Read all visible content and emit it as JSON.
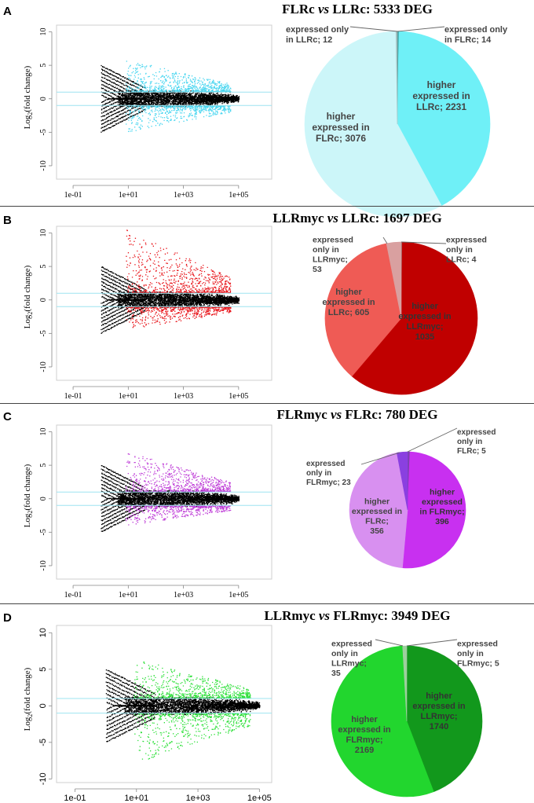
{
  "chart_data": [
    {
      "panel": "A",
      "title_prefix": "FLRc",
      "title_vs": "vs",
      "title_suffix": "LLRc: 5333 DEG",
      "ma_plot": {
        "type": "scatter",
        "ylabel_base": "Log",
        "ylabel_sub": "2",
        "ylabel_rest": "(fold change)",
        "xscale": "log10",
        "xlim_exp": [
          -1.6,
          6.2
        ],
        "ylim": [
          -12,
          11
        ],
        "xticks": [
          {
            "exp": -1,
            "label": "1e-01"
          },
          {
            "exp": 1,
            "label": "1e+01"
          },
          {
            "exp": 3,
            "label": "1e+03"
          },
          {
            "exp": 5,
            "label": "1e+05"
          }
        ],
        "yticks": [
          {
            "value": 10,
            "label": "10"
          },
          {
            "value": 5,
            "label": "5"
          },
          {
            "value": 0,
            "label": "0"
          },
          {
            "value": -5,
            "label": "-5"
          },
          {
            "value": -10,
            "label": "-10"
          }
        ],
        "threshold_lines": [
          1,
          -1
        ],
        "threshold_color": "#9ee4f0",
        "de_color": "#49d6f0",
        "nonde_color": "#000000",
        "spread_upper": 5.8,
        "spread_lower": -5.0
      },
      "pie": {
        "type": "pie",
        "slices": [
          {
            "label": "expressed only in FLRc",
            "value": 14,
            "color": "#2f8f8f",
            "ann": [
              "expressed only",
              "in FLRc; 14"
            ]
          },
          {
            "label": "higher expressed in LLRc",
            "value": 2231,
            "color": "#6ff0f7",
            "ann": [
              "higher",
              "expressed in",
              "LLRc; 2231"
            ]
          },
          {
            "label": "higher expressed in FLRc",
            "value": 3076,
            "color": "#ccf6f9",
            "ann": [
              "higher",
              "expressed in",
              "FLRc; 3076"
            ]
          },
          {
            "label": "expressed only in LLRc",
            "value": 12,
            "color": "#9fbfbf",
            "ann": [
              "expressed only",
              "in LLRc; 12"
            ]
          }
        ]
      }
    },
    {
      "panel": "B",
      "title_prefix": "LLRmyc",
      "title_vs": "vs",
      "title_suffix": "LLRc: 1697 DEG",
      "ma_plot": {
        "type": "scatter",
        "ylabel_base": "Log",
        "ylabel_sub": "2",
        "ylabel_rest": "(fold change)",
        "xscale": "log10",
        "xlim_exp": [
          -1.6,
          6.2
        ],
        "ylim": [
          -12,
          11
        ],
        "xticks": [
          {
            "exp": -1,
            "label": "1e-01"
          },
          {
            "exp": 1,
            "label": "1e+01"
          },
          {
            "exp": 3,
            "label": "1e+03"
          },
          {
            "exp": 5,
            "label": "1e+05"
          }
        ],
        "yticks": [
          {
            "value": 10,
            "label": "10"
          },
          {
            "value": 5,
            "label": "5"
          },
          {
            "value": 0,
            "label": "0"
          },
          {
            "value": -5,
            "label": "-5"
          },
          {
            "value": -10,
            "label": "-10"
          }
        ],
        "threshold_lines": [
          1,
          -1
        ],
        "threshold_color": "#9ee4f0",
        "de_color": "#e8141a",
        "nonde_color": "#000000",
        "spread_upper": 10.5,
        "spread_lower": -4.5
      },
      "pie": {
        "type": "pie",
        "slices": [
          {
            "label": "expressed only in LLRc",
            "value": 4,
            "color": "#9a5050",
            "ann": [
              "expressed",
              "only in",
              "LLRc; 4"
            ]
          },
          {
            "label": "higher expressed in LLRmyc",
            "value": 1035,
            "color": "#c00000",
            "ann": [
              "higher",
              "expressed in",
              "LLRmyc;",
              "1035"
            ]
          },
          {
            "label": "higher expressed in LLRc",
            "value": 605,
            "color": "#ef5b55",
            "ann": [
              "higher",
              "expressed in",
              "LLRc; 605"
            ]
          },
          {
            "label": "expressed only in LLRmyc",
            "value": 53,
            "color": "#d9a0a0",
            "ann": [
              "expressed",
              "only in",
              "LLRmyc;",
              "53"
            ]
          }
        ]
      }
    },
    {
      "panel": "C",
      "title_prefix": "FLRmyc",
      "title_vs": "vs",
      "title_suffix": "FLRc: 780 DEG",
      "ma_plot": {
        "type": "scatter",
        "ylabel_base": "Log",
        "ylabel_sub": "2",
        "ylabel_rest": "(fold change)",
        "xscale": "log10",
        "xlim_exp": [
          -1.6,
          6.2
        ],
        "ylim": [
          -12,
          11
        ],
        "xticks": [
          {
            "exp": -1,
            "label": "1e-01"
          },
          {
            "exp": 1,
            "label": "1e+01"
          },
          {
            "exp": 3,
            "label": "1e+03"
          },
          {
            "exp": 5,
            "label": "1e+05"
          }
        ],
        "yticks": [
          {
            "value": 10,
            "label": "10"
          },
          {
            "value": 5,
            "label": "5"
          },
          {
            "value": 0,
            "label": "0"
          },
          {
            "value": -5,
            "label": "-5"
          },
          {
            "value": -10,
            "label": "-10"
          }
        ],
        "threshold_lines": [
          1,
          -1
        ],
        "threshold_color": "#9ee4f0",
        "de_color": "#c040d8",
        "nonde_color": "#000000",
        "spread_upper": 7.0,
        "spread_lower": -4.0
      },
      "pie": {
        "type": "pie",
        "slices": [
          {
            "label": "expressed only in FLRc",
            "value": 5,
            "color": "#7a3fb0",
            "ann": [
              "expressed",
              "only in",
              "FLRc; 5"
            ]
          },
          {
            "label": "higher expressed in FLRmyc",
            "value": 396,
            "color": "#c830f0",
            "ann": [
              "higher",
              "expressed",
              "in FLRmyc;",
              "396"
            ]
          },
          {
            "label": "higher expressed in FLRc",
            "value": 356,
            "color": "#d890f0",
            "ann": [
              "higher",
              "expressed in",
              "FLRc;",
              "356"
            ]
          },
          {
            "label": "expressed only in FLRmyc",
            "value": 23,
            "color": "#8a40e0",
            "ann": [
              "expressed",
              "only in",
              "FLRmyc; 23"
            ]
          }
        ]
      }
    },
    {
      "panel": "D",
      "title_prefix": "LLRmyc",
      "title_vs": "vs",
      "title_suffix": "FLRmyc: 3949 DEG",
      "ma_plot": {
        "type": "scatter",
        "ylabel_base": "Log",
        "ylabel_sub": "2",
        "ylabel_rest": "(fold change)",
        "xscale": "log10",
        "xlim_exp": [
          -1.6,
          5.4
        ],
        "ylim": [
          -10.5,
          11
        ],
        "xticks": [
          {
            "exp": -1,
            "label": "1e-01"
          },
          {
            "exp": 1,
            "label": "1e+01"
          },
          {
            "exp": 3,
            "label": "1e+03"
          },
          {
            "exp": 5,
            "label": "1e+05"
          }
        ],
        "yticks": [
          {
            "value": 10,
            "label": "10"
          },
          {
            "value": 5,
            "label": "5"
          },
          {
            "value": 0,
            "label": "0"
          },
          {
            "value": -5,
            "label": "-5"
          },
          {
            "value": -10,
            "label": "-10"
          }
        ],
        "threshold_lines": [
          1,
          -1
        ],
        "threshold_color": "#9ee4f0",
        "de_color": "#2ee03a",
        "nonde_color": "#000000",
        "spread_upper": 6.5,
        "spread_lower": -8.0
      },
      "pie": {
        "type": "pie",
        "slices": [
          {
            "label": "expressed only in FLRmyc",
            "value": 5,
            "color": "#4a8a4a",
            "ann": [
              "expressed",
              "only in",
              "FLRmyc; 5"
            ]
          },
          {
            "label": "higher expressed in LLRmyc",
            "value": 1740,
            "color": "#12981c",
            "ann": [
              "higher",
              "expressed in",
              "LLRmyc;",
              "1740"
            ]
          },
          {
            "label": "higher expressed in FLRmyc",
            "value": 2169,
            "color": "#22d62e",
            "ann": [
              "higher",
              "expressed in",
              "FLRmyc;",
              "2169"
            ]
          },
          {
            "label": "expressed only in LLRmyc",
            "value": 35,
            "color": "#9ecf9e",
            "ann": [
              "expressed",
              "only in",
              "LLRmyc;",
              "35"
            ]
          }
        ]
      }
    }
  ]
}
